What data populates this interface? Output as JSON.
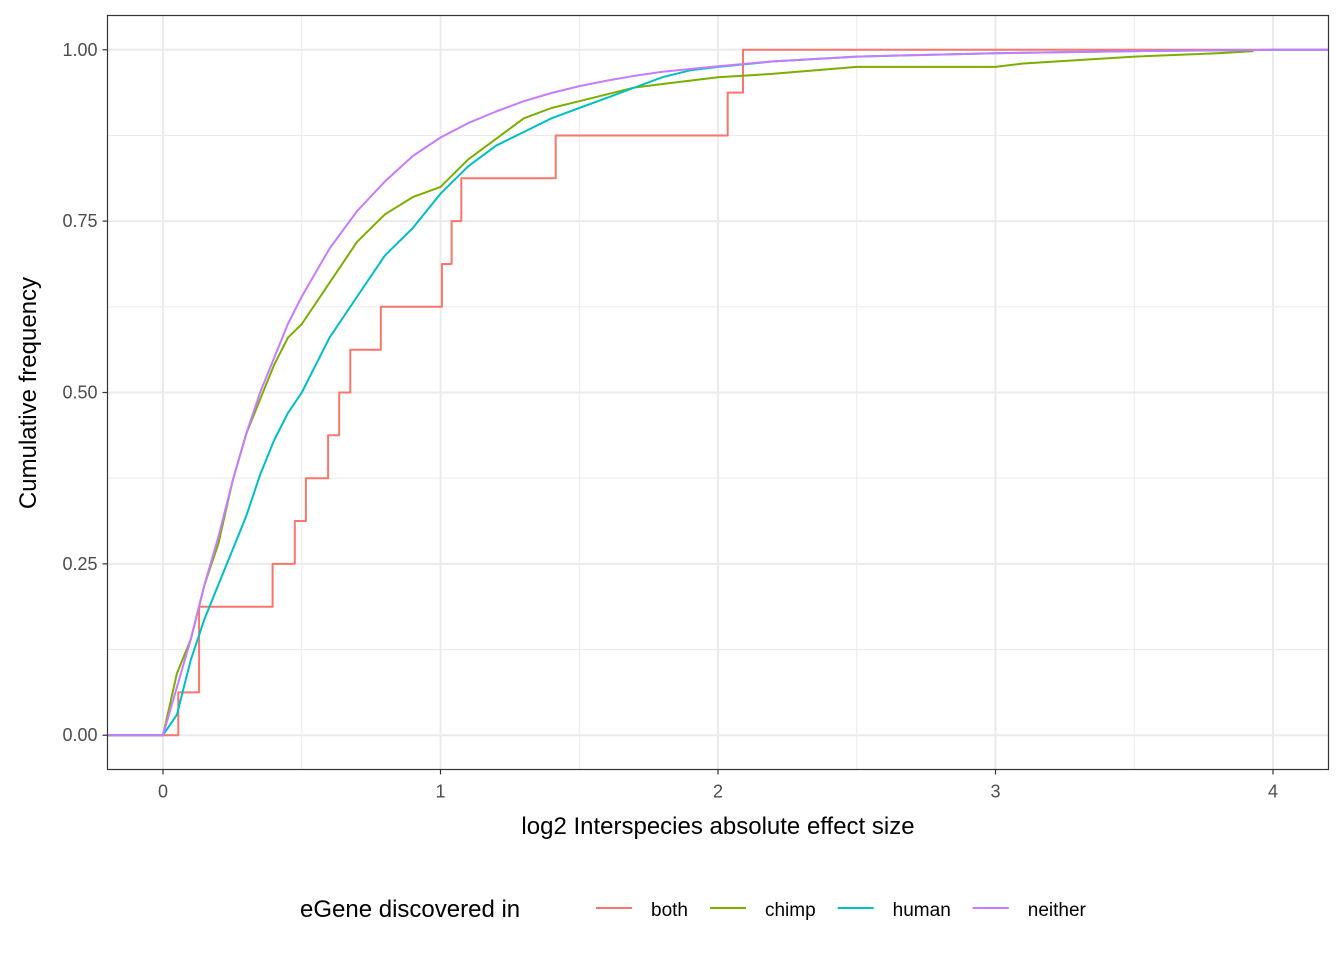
{
  "chart_data": {
    "type": "line",
    "title": "",
    "xlabel": "log2 Interspecies absolute effect size",
    "ylabel": "Cumulative frequency",
    "xlim": [
      -0.2,
      4.2
    ],
    "ylim": [
      -0.05,
      1.05
    ],
    "grid": true,
    "x_ticks": [
      0,
      1,
      2,
      3,
      4
    ],
    "x_tick_labels": [
      "0",
      "1",
      "2",
      "3",
      "4"
    ],
    "y_ticks": [
      0,
      0.25,
      0.5,
      0.75,
      1
    ],
    "y_tick_labels": [
      "0.00",
      "0.25",
      "0.50",
      "0.75",
      "1.00"
    ],
    "legend": {
      "title": "eGene discovered in",
      "position": "bottom"
    },
    "series": [
      {
        "name": "both",
        "color": "#F8766D",
        "x": [
          -0.2,
          0.055,
          0.055,
          0.13,
          0.13,
          0.395,
          0.395,
          0.475,
          0.475,
          0.515,
          0.515,
          0.595,
          0.595,
          0.635,
          0.635,
          0.675,
          0.675,
          0.785,
          0.785,
          1.005,
          1.005,
          1.04,
          1.04,
          1.075,
          1.075,
          1.415,
          1.415,
          2.035,
          2.035,
          2.09,
          2.09,
          4.2
        ],
        "y": [
          0,
          0,
          0.0625,
          0.0625,
          0.1875,
          0.1875,
          0.25,
          0.25,
          0.3125,
          0.3125,
          0.375,
          0.375,
          0.4375,
          0.4375,
          0.5,
          0.5,
          0.5625,
          0.5625,
          0.625,
          0.625,
          0.6875,
          0.6875,
          0.75,
          0.75,
          0.8125,
          0.8125,
          0.875,
          0.875,
          0.9375,
          0.9375,
          1.0,
          1.0
        ]
      },
      {
        "name": "chimp",
        "color": "#7CAE00",
        "x": [
          -0.2,
          0.0,
          0.05,
          0.1,
          0.15,
          0.2,
          0.25,
          0.3,
          0.35,
          0.4,
          0.45,
          0.5,
          0.6,
          0.7,
          0.8,
          0.9,
          1.0,
          1.1,
          1.2,
          1.3,
          1.4,
          1.5,
          1.6,
          1.7,
          1.8,
          1.9,
          2.0,
          2.2,
          2.5,
          3.0,
          3.1,
          3.5,
          3.8,
          3.93
        ],
        "y": [
          0,
          0,
          0.09,
          0.14,
          0.22,
          0.28,
          0.37,
          0.44,
          0.49,
          0.54,
          0.58,
          0.6,
          0.66,
          0.72,
          0.76,
          0.785,
          0.8,
          0.84,
          0.87,
          0.9,
          0.915,
          0.925,
          0.935,
          0.945,
          0.95,
          0.955,
          0.96,
          0.965,
          0.975,
          0.975,
          0.98,
          0.99,
          0.995,
          0.998
        ]
      },
      {
        "name": "human",
        "color": "#00BFC4",
        "x": [
          -0.2,
          0.0,
          0.05,
          0.1,
          0.15,
          0.2,
          0.25,
          0.3,
          0.35,
          0.4,
          0.45,
          0.5,
          0.6,
          0.7,
          0.8,
          0.9,
          1.0,
          1.1,
          1.2,
          1.3,
          1.4,
          1.5,
          1.6,
          1.7,
          1.8,
          1.9,
          2.0,
          2.2,
          2.5,
          3.0,
          3.5,
          4.0,
          4.2
        ],
        "y": [
          0,
          0,
          0.03,
          0.11,
          0.17,
          0.22,
          0.27,
          0.32,
          0.38,
          0.43,
          0.47,
          0.5,
          0.58,
          0.64,
          0.7,
          0.74,
          0.79,
          0.83,
          0.86,
          0.88,
          0.9,
          0.915,
          0.93,
          0.945,
          0.96,
          0.97,
          0.975,
          0.983,
          0.99,
          0.995,
          0.998,
          1.0,
          1.0
        ]
      },
      {
        "name": "neither",
        "color": "#C77CFF",
        "x": [
          -0.2,
          0.0,
          0.05,
          0.1,
          0.15,
          0.2,
          0.25,
          0.3,
          0.35,
          0.4,
          0.45,
          0.5,
          0.6,
          0.7,
          0.8,
          0.9,
          1.0,
          1.1,
          1.2,
          1.3,
          1.4,
          1.5,
          1.6,
          1.7,
          1.8,
          1.9,
          2.0,
          2.2,
          2.5,
          3.0,
          3.5,
          4.0,
          4.2
        ],
        "y": [
          0,
          0,
          0.07,
          0.14,
          0.22,
          0.29,
          0.37,
          0.44,
          0.5,
          0.55,
          0.6,
          0.64,
          0.71,
          0.765,
          0.808,
          0.845,
          0.872,
          0.893,
          0.91,
          0.925,
          0.937,
          0.947,
          0.955,
          0.962,
          0.968,
          0.972,
          0.976,
          0.983,
          0.99,
          0.995,
          0.998,
          1.0,
          1.0
        ]
      }
    ]
  }
}
